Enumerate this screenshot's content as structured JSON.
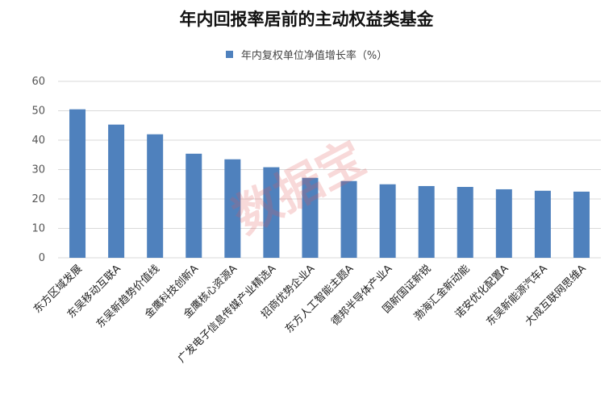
{
  "chart_data": {
    "type": "bar",
    "title": "年内回报率居前的主动权益类基金",
    "legend": {
      "position": "top",
      "entries": [
        "年内复权单位净值增长率（%）"
      ]
    },
    "series": [
      {
        "name": "年内复权单位净值增长率（%）",
        "color": "#4f81bd",
        "values": [
          50.5,
          45.3,
          42.0,
          35.4,
          33.5,
          30.8,
          27.2,
          26.1,
          25.0,
          24.4,
          24.1,
          23.3,
          22.8,
          22.5
        ]
      }
    ],
    "categories": [
      "东方区域发展",
      "东吴移动互联A",
      "东吴新趋势价值线",
      "金鹰科技创新A",
      "金鹰核心资源A",
      "广发电子信息传媒产业精选A",
      "招商优势企业A",
      "东方人工智能主题A",
      "德邦半导体产业A",
      "国新国证新锐",
      "渤海汇金新动能",
      "诺安优化配置A",
      "东吴新能源汽车A",
      "大成互联网思维A"
    ],
    "ylim": [
      0,
      60
    ],
    "yticks": [
      0,
      10,
      20,
      30,
      40,
      50,
      60
    ],
    "grid": true,
    "xlabel": "",
    "ylabel": ""
  },
  "watermark": "数据宝"
}
